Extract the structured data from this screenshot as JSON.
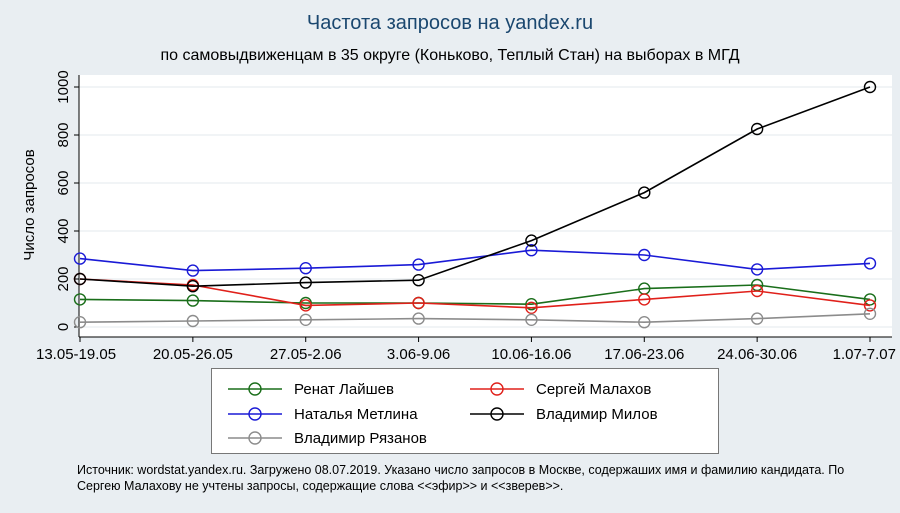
{
  "chart_data": {
    "type": "line",
    "title": "Частота запросов на yandex.ru",
    "subtitle": "по самовыдвиженцам в 35 округе (Коньково, Теплый Стан) на выборах в МГД",
    "ylabel": "Число запросов",
    "xlabel": "",
    "ylim": [
      0,
      1000
    ],
    "yticks": [
      0,
      200,
      400,
      600,
      800,
      1000
    ],
    "grid": true,
    "legend_position": "bottom",
    "categories": [
      "13.05-19.05",
      "20.05-26.05",
      "27.05-2.06",
      "3.06-9.06",
      "10.06-16.06",
      "17.06-23.06",
      "24.06-30.06",
      "1.07-7.07"
    ],
    "series": [
      {
        "name": "Ренат Лайшев",
        "color": "#1a6e1a",
        "values": [
          115,
          110,
          100,
          100,
          95,
          160,
          175,
          115
        ]
      },
      {
        "name": "Сергей Малахов",
        "color": "#e0201a",
        "values": [
          200,
          175,
          90,
          100,
          80,
          115,
          150,
          90
        ]
      },
      {
        "name": "Наталья Метлина",
        "color": "#1a1ad6",
        "values": [
          285,
          235,
          245,
          260,
          320,
          300,
          240,
          265
        ]
      },
      {
        "name": "Владимир Милов",
        "color": "#000000",
        "values": [
          200,
          170,
          185,
          195,
          360,
          560,
          825,
          1000
        ]
      },
      {
        "name": "Владимир Рязанов",
        "color": "#8c8c8c",
        "values": [
          20,
          25,
          30,
          35,
          30,
          20,
          35,
          55
        ]
      }
    ],
    "source_note": "Источник: wordstat.yandex.ru. Загружено 08.07.2019. Указано число запросов в Москве, содержаших имя и фамилию кандидата. По Сергею Малахову не учтены запросы, содержащие слова <<эфир>> и <<зверев>>."
  }
}
